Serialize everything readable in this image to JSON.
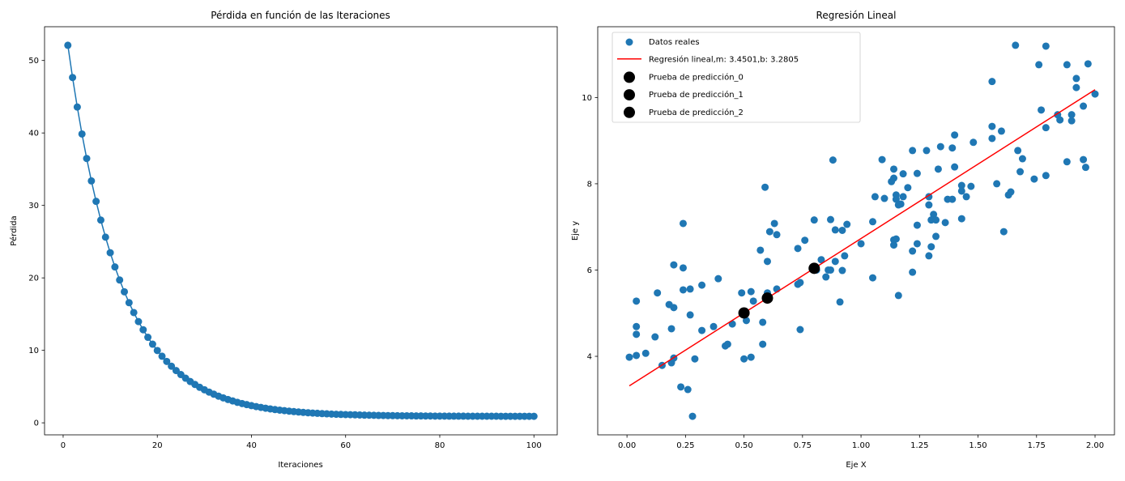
{
  "chart_data": [
    {
      "type": "line",
      "title": "Pérdida en función de las Iteraciones",
      "xlabel": "Iteraciones",
      "ylabel": "Pérdida",
      "xlim": [
        -3.95,
        104.95
      ],
      "ylim": [
        -1.66,
        54.66
      ],
      "xticks": [
        0,
        20,
        40,
        60,
        80,
        100
      ],
      "yticks": [
        0,
        10,
        20,
        30,
        40,
        50
      ],
      "grid": false,
      "markers": true,
      "color": "#1f77b4",
      "x": [
        1,
        2,
        3,
        4,
        5,
        6,
        7,
        8,
        9,
        10,
        11,
        12,
        13,
        14,
        15,
        16,
        17,
        18,
        19,
        20,
        21,
        22,
        23,
        24,
        25,
        26,
        27,
        28,
        29,
        30,
        31,
        32,
        33,
        34,
        35,
        36,
        37,
        38,
        39,
        40,
        41,
        42,
        43,
        44,
        45,
        46,
        47,
        48,
        49,
        50,
        51,
        52,
        53,
        54,
        55,
        56,
        57,
        58,
        59,
        60,
        61,
        62,
        63,
        64,
        65,
        66,
        67,
        68,
        69,
        70,
        71,
        72,
        73,
        74,
        75,
        76,
        77,
        78,
        79,
        80,
        81,
        82,
        83,
        84,
        85,
        86,
        87,
        88,
        89,
        90,
        91,
        92,
        93,
        94,
        95,
        96,
        97,
        98,
        99,
        100
      ],
      "y": [
        52.1,
        47.65,
        43.58,
        39.86,
        36.48,
        33.38,
        30.56,
        27.98,
        25.62,
        23.47,
        21.51,
        19.71,
        18.08,
        16.58,
        15.22,
        13.97,
        12.84,
        11.8,
        10.85,
        9.98,
        9.19,
        8.47,
        7.81,
        7.21,
        6.66,
        6.16,
        5.7,
        5.29,
        4.9,
        4.56,
        4.24,
        3.95,
        3.68,
        3.44,
        3.22,
        3.02,
        2.83,
        2.66,
        2.51,
        2.37,
        2.24,
        2.13,
        2.02,
        1.92,
        1.83,
        1.75,
        1.68,
        1.61,
        1.55,
        1.49,
        1.44,
        1.39,
        1.35,
        1.31,
        1.27,
        1.24,
        1.21,
        1.18,
        1.16,
        1.14,
        1.12,
        1.1,
        1.08,
        1.06,
        1.05,
        1.04,
        1.02,
        1.01,
        1.0,
        0.99,
        0.98,
        0.97,
        0.97,
        0.96,
        0.95,
        0.95,
        0.94,
        0.94,
        0.93,
        0.93,
        0.93,
        0.92,
        0.92,
        0.92,
        0.92,
        0.91,
        0.91,
        0.91,
        0.91,
        0.91,
        0.91,
        0.91,
        0.9,
        0.9,
        0.9,
        0.9,
        0.9,
        0.9,
        0.9,
        0.9
      ]
    },
    {
      "type": "scatter",
      "title": "Regresión Lineal",
      "xlabel": "Eje X",
      "ylabel": "Eje y",
      "xlim": [
        -0.125,
        2.083
      ],
      "ylim": [
        2.18,
        11.64
      ],
      "xticks": [
        "0.00",
        "0.25",
        "0.50",
        "0.75",
        "1.00",
        "1.25",
        "1.50",
        "1.75",
        "2.00"
      ],
      "yticks": [
        4,
        6,
        8,
        10
      ],
      "grid": false,
      "legend_position": "top-left",
      "series": [
        {
          "name": "Datos reales",
          "type": "scatter",
          "color": "#1f77b4",
          "points": [
            [
              0.01,
              3.98
            ],
            [
              0.04,
              4.02
            ],
            [
              0.04,
              5.28
            ],
            [
              0.04,
              4.69
            ],
            [
              0.04,
              4.51
            ],
            [
              0.08,
              4.07
            ],
            [
              0.12,
              4.45
            ],
            [
              0.13,
              5.47
            ],
            [
              0.15,
              3.79
            ],
            [
              0.18,
              5.2
            ],
            [
              0.2,
              6.12
            ],
            [
              0.19,
              4.64
            ],
            [
              0.2,
              5.13
            ],
            [
              0.19,
              3.85
            ],
            [
              0.2,
              3.96
            ],
            [
              0.23,
              3.29
            ],
            [
              0.24,
              7.08
            ],
            [
              0.24,
              6.05
            ],
            [
              0.24,
              5.54
            ],
            [
              0.27,
              5.56
            ],
            [
              0.26,
              3.23
            ],
            [
              0.27,
              4.96
            ],
            [
              0.28,
              2.61
            ],
            [
              0.29,
              3.94
            ],
            [
              0.32,
              4.6
            ],
            [
              0.32,
              5.65
            ],
            [
              0.37,
              4.69
            ],
            [
              0.39,
              5.8
            ],
            [
              0.42,
              4.24
            ],
            [
              0.43,
              4.28
            ],
            [
              0.45,
              4.75
            ],
            [
              0.49,
              5.47
            ],
            [
              0.5,
              3.94
            ],
            [
              0.51,
              4.83
            ],
            [
              0.53,
              5.5
            ],
            [
              0.53,
              3.98
            ],
            [
              0.54,
              5.28
            ],
            [
              0.57,
              6.46
            ],
            [
              0.58,
              4.79
            ],
            [
              0.58,
              4.28
            ],
            [
              0.59,
              7.92
            ],
            [
              0.6,
              6.2
            ],
            [
              0.6,
              5.47
            ],
            [
              0.61,
              6.89
            ],
            [
              0.63,
              7.08
            ],
            [
              0.64,
              6.82
            ],
            [
              0.64,
              5.56
            ],
            [
              0.73,
              6.5
            ],
            [
              0.73,
              5.67
            ],
            [
              0.74,
              5.71
            ],
            [
              0.74,
              4.62
            ],
            [
              0.76,
              6.69
            ],
            [
              0.8,
              7.16
            ],
            [
              0.81,
              6.0
            ],
            [
              0.83,
              6.24
            ],
            [
              0.85,
              5.84
            ],
            [
              0.87,
              7.17
            ],
            [
              0.86,
              6.0
            ],
            [
              0.87,
              6.0
            ],
            [
              0.88,
              8.55
            ],
            [
              0.89,
              6.93
            ],
            [
              0.89,
              6.2
            ],
            [
              0.91,
              5.26
            ],
            [
              0.92,
              5.99
            ],
            [
              0.92,
              6.92
            ],
            [
              0.93,
              6.33
            ],
            [
              0.94,
              7.06
            ],
            [
              1.0,
              6.61
            ],
            [
              1.05,
              5.82
            ],
            [
              1.05,
              7.12
            ],
            [
              1.06,
              7.7
            ],
            [
              1.09,
              8.56
            ],
            [
              1.1,
              7.66
            ],
            [
              1.14,
              6.58
            ],
            [
              1.13,
              8.05
            ],
            [
              1.14,
              8.34
            ],
            [
              1.14,
              8.13
            ],
            [
              1.15,
              7.64
            ],
            [
              1.15,
              7.74
            ],
            [
              1.14,
              6.7
            ],
            [
              1.15,
              6.72
            ],
            [
              1.16,
              7.51
            ],
            [
              1.16,
              5.41
            ],
            [
              1.17,
              7.53
            ],
            [
              1.18,
              7.7
            ],
            [
              1.18,
              8.23
            ],
            [
              1.2,
              7.91
            ],
            [
              1.22,
              6.44
            ],
            [
              1.22,
              5.95
            ],
            [
              1.22,
              8.77
            ],
            [
              1.24,
              6.61
            ],
            [
              1.24,
              7.04
            ],
            [
              1.24,
              8.24
            ],
            [
              1.28,
              8.77
            ],
            [
              1.29,
              7.51
            ],
            [
              1.29,
              7.7
            ],
            [
              1.29,
              6.33
            ],
            [
              1.3,
              6.54
            ],
            [
              1.3,
              7.16
            ],
            [
              1.31,
              7.29
            ],
            [
              1.32,
              7.16
            ],
            [
              1.32,
              6.78
            ],
            [
              1.33,
              8.34
            ],
            [
              1.34,
              8.86
            ],
            [
              1.36,
              7.1
            ],
            [
              1.37,
              7.64
            ],
            [
              1.39,
              8.83
            ],
            [
              1.39,
              7.64
            ],
            [
              1.4,
              9.13
            ],
            [
              1.4,
              8.39
            ],
            [
              1.43,
              7.96
            ],
            [
              1.43,
              7.83
            ],
            [
              1.43,
              7.19
            ],
            [
              1.45,
              7.7
            ],
            [
              1.47,
              7.94
            ],
            [
              1.48,
              8.96
            ],
            [
              1.56,
              10.37
            ],
            [
              1.56,
              9.33
            ],
            [
              1.56,
              9.05
            ],
            [
              1.58,
              8.0
            ],
            [
              1.6,
              9.22
            ],
            [
              1.61,
              6.89
            ],
            [
              1.63,
              7.74
            ],
            [
              1.64,
              7.81
            ],
            [
              1.66,
              11.21
            ],
            [
              1.67,
              8.77
            ],
            [
              1.68,
              8.28
            ],
            [
              1.69,
              8.58
            ],
            [
              1.74,
              8.11
            ],
            [
              1.76,
              10.76
            ],
            [
              1.77,
              9.71
            ],
            [
              1.79,
              11.19
            ],
            [
              1.79,
              9.3
            ],
            [
              1.79,
              8.19
            ],
            [
              1.84,
              9.6
            ],
            [
              1.85,
              9.48
            ],
            [
              1.88,
              8.51
            ],
            [
              1.88,
              10.76
            ],
            [
              1.9,
              9.46
            ],
            [
              1.9,
              9.6
            ],
            [
              1.92,
              10.44
            ],
            [
              1.92,
              10.23
            ],
            [
              1.95,
              8.56
            ],
            [
              1.95,
              9.8
            ],
            [
              1.96,
              8.38
            ],
            [
              1.97,
              10.78
            ],
            [
              2.0,
              10.08
            ]
          ]
        },
        {
          "name": "Regresión lineal,m: 3.4501,b: 3.2805",
          "type": "line",
          "color": "#ff0000",
          "m": 3.4501,
          "b": 3.2805,
          "x_range": [
            0.01,
            2.0
          ]
        },
        {
          "name": "Prueba de predicción_0",
          "type": "scatter",
          "color": "#000000",
          "points": [
            [
              0.5,
              5.0056
            ]
          ]
        },
        {
          "name": "Prueba de predicción_1",
          "type": "scatter",
          "color": "#000000",
          "points": [
            [
              0.6,
              5.3506
            ]
          ]
        },
        {
          "name": "Prueba de predicción_2",
          "type": "scatter",
          "color": "#000000",
          "points": [
            [
              0.8,
              6.0406
            ]
          ]
        }
      ]
    }
  ]
}
